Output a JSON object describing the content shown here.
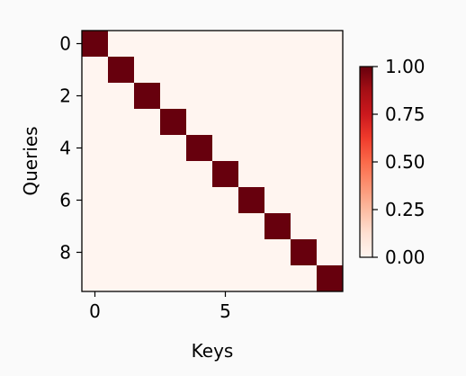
{
  "chart_data": {
    "type": "heatmap",
    "title": "",
    "xlabel": "Keys",
    "ylabel": "Queries",
    "x_ticks": [
      0,
      5
    ],
    "y_ticks": [
      0,
      2,
      4,
      6,
      8
    ],
    "matrix": [
      [
        1,
        0,
        0,
        0,
        0,
        0,
        0,
        0,
        0,
        0
      ],
      [
        0,
        1,
        0,
        0,
        0,
        0,
        0,
        0,
        0,
        0
      ],
      [
        0,
        0,
        1,
        0,
        0,
        0,
        0,
        0,
        0,
        0
      ],
      [
        0,
        0,
        0,
        1,
        0,
        0,
        0,
        0,
        0,
        0
      ],
      [
        0,
        0,
        0,
        0,
        1,
        0,
        0,
        0,
        0,
        0
      ],
      [
        0,
        0,
        0,
        0,
        0,
        1,
        0,
        0,
        0,
        0
      ],
      [
        0,
        0,
        0,
        0,
        0,
        0,
        1,
        0,
        0,
        0
      ],
      [
        0,
        0,
        0,
        0,
        0,
        0,
        0,
        1,
        0,
        0
      ],
      [
        0,
        0,
        0,
        0,
        0,
        0,
        0,
        0,
        1,
        0
      ],
      [
        0,
        0,
        0,
        0,
        0,
        0,
        0,
        0,
        0,
        1
      ]
    ],
    "colormap": "Reds",
    "colorbar": {
      "vmin": 0.0,
      "vmax": 1.0,
      "ticks": [
        0.0,
        0.25,
        0.5,
        0.75,
        1.0
      ],
      "tick_labels": [
        "0.00",
        "0.25",
        "0.50",
        "0.75",
        "1.00"
      ]
    },
    "grid": false,
    "colors": {
      "low": "#fff5f0",
      "high": "#67000d",
      "background": "#fafafa"
    }
  }
}
